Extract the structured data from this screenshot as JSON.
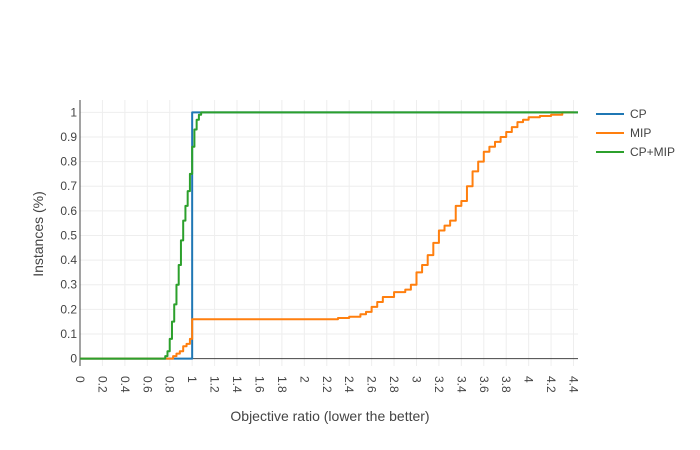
{
  "chart_data": {
    "type": "line",
    "title": "",
    "xlabel": "Objective ratio (lower the better)",
    "ylabel": "Instances (%)",
    "xlim": [
      0,
      4.44
    ],
    "ylim": [
      -0.03,
      1.05
    ],
    "x_ticks": [
      0,
      0.2,
      0.4,
      0.6,
      0.8,
      1,
      1.2,
      1.4,
      1.6,
      1.8,
      2,
      2.2,
      2.4,
      2.6,
      2.8,
      3,
      3.2,
      3.4,
      3.6,
      3.8,
      4,
      4.2,
      4.4
    ],
    "y_ticks": [
      0,
      0.1,
      0.2,
      0.3,
      0.4,
      0.5,
      0.6,
      0.7,
      0.8,
      0.9,
      1
    ],
    "grid": true,
    "legend_position": "top-right",
    "series": [
      {
        "name": "CP",
        "color": "#1f77b4",
        "x": [
          0,
          1,
          1,
          1,
          4.44
        ],
        "y": [
          0,
          0,
          0.16,
          1,
          1
        ]
      },
      {
        "name": "MIP",
        "color": "#ff7f0e",
        "x": [
          0,
          0.8,
          0.83,
          0.86,
          0.89,
          0.92,
          0.95,
          0.98,
          1.0,
          1.1,
          1.5,
          2.0,
          2.22,
          2.3,
          2.4,
          2.5,
          2.55,
          2.6,
          2.65,
          2.7,
          2.75,
          2.8,
          2.9,
          2.95,
          3.0,
          3.05,
          3.1,
          3.15,
          3.2,
          3.25,
          3.3,
          3.35,
          3.4,
          3.45,
          3.5,
          3.55,
          3.6,
          3.65,
          3.7,
          3.75,
          3.8,
          3.85,
          3.9,
          3.95,
          4.0,
          4.1,
          4.2,
          4.3,
          4.4
        ],
        "y": [
          0,
          0,
          0.01,
          0.02,
          0.03,
          0.05,
          0.06,
          0.08,
          0.16,
          0.16,
          0.16,
          0.16,
          0.16,
          0.165,
          0.17,
          0.18,
          0.19,
          0.21,
          0.23,
          0.25,
          0.25,
          0.27,
          0.28,
          0.3,
          0.35,
          0.38,
          0.42,
          0.47,
          0.52,
          0.54,
          0.56,
          0.62,
          0.64,
          0.7,
          0.76,
          0.8,
          0.84,
          0.86,
          0.88,
          0.9,
          0.92,
          0.94,
          0.96,
          0.97,
          0.98,
          0.985,
          0.99,
          1.0,
          1.0
        ]
      },
      {
        "name": "CP+MIP",
        "color": "#2ca02c",
        "x": [
          0,
          0.74,
          0.76,
          0.78,
          0.8,
          0.82,
          0.84,
          0.86,
          0.88,
          0.9,
          0.92,
          0.94,
          0.96,
          0.98,
          1.0,
          1.02,
          1.04,
          1.06,
          1.08,
          1.1,
          4.44
        ],
        "y": [
          0,
          0,
          0.01,
          0.03,
          0.08,
          0.15,
          0.22,
          0.3,
          0.38,
          0.48,
          0.56,
          0.62,
          0.68,
          0.75,
          0.86,
          0.93,
          0.97,
          0.99,
          1.0,
          1.0,
          1.0
        ]
      }
    ]
  }
}
